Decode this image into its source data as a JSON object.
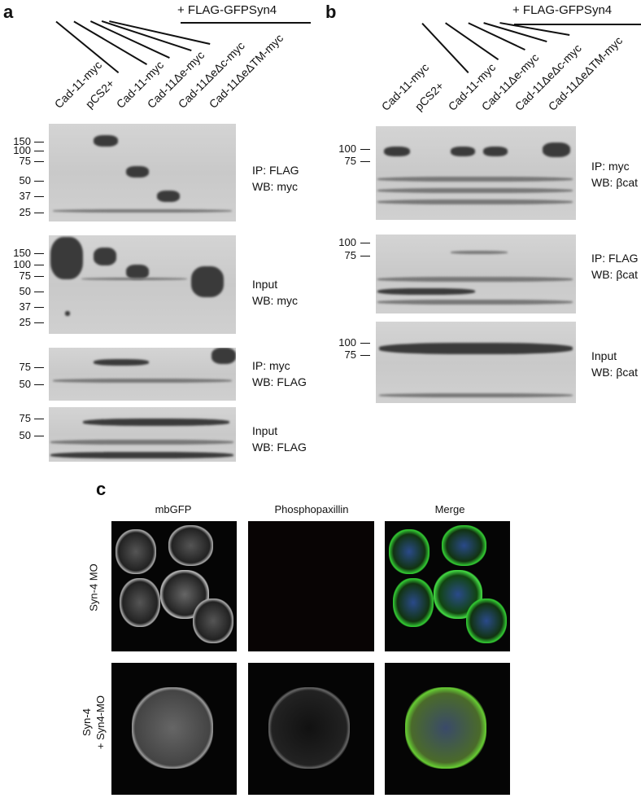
{
  "panel_a": {
    "label": "a",
    "treatment": "+ FLAG-GFPSyn4",
    "lanes": [
      "Cad-11-myc",
      "pCS2+",
      "Cad-11-myc",
      "Cad-11Δe-myc",
      "Cad-11ΔeΔc-myc",
      "Cad-11ΔeΔTM-myc"
    ],
    "blots": [
      {
        "markers": [
          "150",
          "100",
          "75",
          "50",
          "37",
          "25"
        ],
        "condition": [
          "IP: FLAG",
          "WB: myc"
        ]
      },
      {
        "markers": [
          "150",
          "100",
          "75",
          "50",
          "37",
          "25"
        ],
        "condition": [
          "Input",
          "WB: myc"
        ]
      },
      {
        "markers": [
          "75",
          "50"
        ],
        "condition": [
          "IP: myc",
          "WB: FLAG"
        ]
      },
      {
        "markers": [
          "75",
          "50"
        ],
        "condition": [
          "Input",
          "WB: FLAG"
        ]
      }
    ]
  },
  "panel_b": {
    "label": "b",
    "treatment": "+ FLAG-GFPSyn4",
    "lanes": [
      "Cad-11-myc",
      "pCS2+",
      "Cad-11-myc",
      "Cad-11Δe-myc",
      "Cad-11ΔeΔc-myc",
      "Cad-11ΔeΔTM-myc"
    ],
    "blots": [
      {
        "markers": [
          "100",
          "75"
        ],
        "condition": [
          "IP: myc",
          "WB: βcat"
        ]
      },
      {
        "markers": [
          "100",
          "75"
        ],
        "condition": [
          "IP: FLAG",
          "WB: βcat"
        ]
      },
      {
        "markers": [
          "100",
          "75"
        ],
        "condition": [
          "Input",
          "WB: βcat"
        ]
      }
    ]
  },
  "panel_c": {
    "label": "c",
    "columns": [
      "mbGFP",
      "Phosphopaxillin",
      "Merge"
    ],
    "rows": [
      [
        "Syn-4 MO"
      ],
      [
        "Syn-4",
        "+ Syn4-MO"
      ]
    ]
  }
}
